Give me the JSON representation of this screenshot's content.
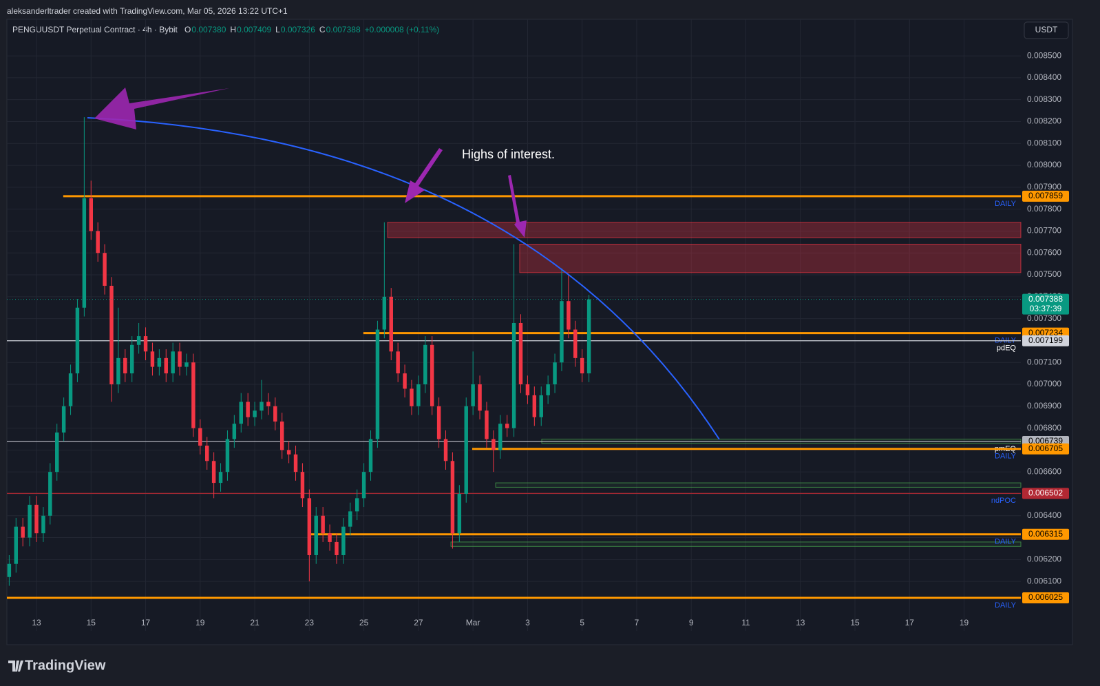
{
  "header": {
    "credit": "aleksanderltrader created with TradingView.com, Mar 05, 2026 13:22 UTC+1",
    "symbol": "PENGUUSDT Perpetual Contract · 4h · Bybit",
    "ohlc": [
      {
        "key": "O",
        "value": "0.007380"
      },
      {
        "key": "H",
        "value": "0.007409"
      },
      {
        "key": "L",
        "value": "0.007326"
      },
      {
        "key": "C",
        "value": "0.007388"
      }
    ],
    "change": "+0.000008 (+0.11%)",
    "currency": "USDT",
    "logo": "TradingView"
  },
  "chart_data": {
    "type": "candlestick",
    "annotation": "Highs of interest.",
    "up_color": "#089981",
    "down_color": "#f23645",
    "x": [
      -1,
      -0.75,
      -0.5,
      -0.25,
      0,
      0.25,
      0.5,
      0.75,
      1,
      1.25,
      1.5,
      1.75,
      2,
      2.25,
      2.5,
      2.75,
      3,
      3.25,
      3.5,
      3.75,
      4,
      4.25,
      4.5,
      4.75,
      5,
      5.25,
      5.5,
      5.75,
      6,
      6.25,
      6.5,
      6.75,
      7,
      7.25,
      7.5,
      7.75,
      8,
      8.25,
      8.5,
      8.75,
      9,
      9.25,
      9.5,
      9.75,
      10,
      10.25,
      10.5,
      10.75,
      11,
      11.25,
      11.5,
      11.75,
      12,
      12.25,
      12.5,
      12.75,
      13,
      13.25,
      13.5,
      13.75,
      14,
      14.25,
      14.5,
      14.75,
      15,
      15.25,
      15.5,
      15.75,
      16,
      16.25,
      16.5,
      16.75,
      17,
      17.25,
      17.5,
      17.75,
      18,
      18.25,
      18.5,
      18.75,
      19,
      19.25,
      19.5,
      19.75,
      20,
      20.25
    ],
    "open": [
      0.00612,
      0.00618,
      0.00635,
      0.0063,
      0.00645,
      0.00632,
      0.0064,
      0.0066,
      0.00678,
      0.0069,
      0.00705,
      0.00735,
      0.00785,
      0.0077,
      0.0076,
      0.00745,
      0.007,
      0.00712,
      0.00705,
      0.00718,
      0.00722,
      0.00715,
      0.00708,
      0.00712,
      0.00705,
      0.00715,
      0.00708,
      0.0071,
      0.0068,
      0.00672,
      0.00665,
      0.00655,
      0.0066,
      0.00675,
      0.00682,
      0.00692,
      0.00685,
      0.00688,
      0.00692,
      0.0069,
      0.00683,
      0.0067,
      0.00668,
      0.0066,
      0.00648,
      0.00622,
      0.0064,
      0.00632,
      0.00628,
      0.00622,
      0.00635,
      0.00642,
      0.00648,
      0.0066,
      0.00675,
      0.00725,
      0.0074,
      0.00715,
      0.00705,
      0.00698,
      0.0069,
      0.007,
      0.00718,
      0.0069,
      0.00675,
      0.00665,
      0.00632,
      0.0065,
      0.0069,
      0.007,
      0.00688,
      0.00675,
      0.0067,
      0.00682,
      0.0068,
      0.00728,
      0.007,
      0.00695,
      0.00685,
      0.00695,
      0.007,
      0.0071,
      0.00738,
      0.00725,
      0.00712,
      0.00705
    ],
    "high": [
      0.00622,
      0.00639,
      0.00639,
      0.00649,
      0.00649,
      0.00644,
      0.00664,
      0.00682,
      0.00694,
      0.00709,
      0.00739,
      0.00822,
      0.00793,
      0.00774,
      0.00764,
      0.00749,
      0.00735,
      0.00716,
      0.00722,
      0.00728,
      0.00726,
      0.00719,
      0.00716,
      0.00716,
      0.00719,
      0.00719,
      0.00714,
      0.00714,
      0.00684,
      0.00676,
      0.00669,
      0.00664,
      0.00679,
      0.00686,
      0.00696,
      0.00696,
      0.00692,
      0.00702,
      0.00696,
      0.00694,
      0.00687,
      0.00674,
      0.00672,
      0.00664,
      0.00652,
      0.00644,
      0.00644,
      0.00636,
      0.00632,
      0.00639,
      0.00646,
      0.00652,
      0.00664,
      0.00679,
      0.00729,
      0.00774,
      0.00744,
      0.00719,
      0.00709,
      0.00702,
      0.00704,
      0.00722,
      0.00722,
      0.00694,
      0.00679,
      0.00669,
      0.00654,
      0.00694,
      0.00715,
      0.00704,
      0.00692,
      0.00679,
      0.00686,
      0.00686,
      0.00764,
      0.00732,
      0.00704,
      0.00699,
      0.00699,
      0.00704,
      0.00714,
      0.00753,
      0.0075,
      0.00729,
      0.00716,
      0.007409
    ],
    "low": [
      0.00608,
      0.00614,
      0.00626,
      0.00626,
      0.00628,
      0.00628,
      0.00636,
      0.00656,
      0.00674,
      0.00686,
      0.00701,
      0.00731,
      0.00766,
      0.00756,
      0.00741,
      0.00692,
      0.00696,
      0.00701,
      0.00701,
      0.00714,
      0.00711,
      0.00704,
      0.00704,
      0.00701,
      0.00701,
      0.00704,
      0.00704,
      0.00676,
      0.00668,
      0.00661,
      0.00648,
      0.00651,
      0.00656,
      0.00671,
      0.00678,
      0.00681,
      0.00681,
      0.00684,
      0.00686,
      0.00679,
      0.00666,
      0.00664,
      0.00656,
      0.00644,
      0.0061,
      0.00618,
      0.00628,
      0.00624,
      0.00618,
      0.00618,
      0.00631,
      0.00638,
      0.00644,
      0.00656,
      0.00671,
      0.00721,
      0.00711,
      0.00701,
      0.00694,
      0.00686,
      0.00686,
      0.00696,
      0.00686,
      0.00671,
      0.00661,
      0.00625,
      0.00628,
      0.00646,
      0.00686,
      0.00684,
      0.00671,
      0.0066,
      0.00666,
      0.00676,
      0.00676,
      0.00696,
      0.00691,
      0.00681,
      0.00681,
      0.00691,
      0.00696,
      0.00706,
      0.00721,
      0.00708,
      0.00701,
      0.00701
    ],
    "close": [
      0.00618,
      0.00635,
      0.0063,
      0.00645,
      0.00632,
      0.0064,
      0.0066,
      0.00678,
      0.0069,
      0.00705,
      0.00735,
      0.00785,
      0.0077,
      0.0076,
      0.00745,
      0.007,
      0.00712,
      0.00705,
      0.00718,
      0.00722,
      0.00715,
      0.00708,
      0.00712,
      0.00705,
      0.00715,
      0.00708,
      0.0071,
      0.0068,
      0.00672,
      0.00665,
      0.00655,
      0.0066,
      0.00675,
      0.00682,
      0.00692,
      0.00685,
      0.00688,
      0.00692,
      0.0069,
      0.00683,
      0.0067,
      0.00668,
      0.0066,
      0.00648,
      0.00622,
      0.0064,
      0.00632,
      0.00628,
      0.00622,
      0.00635,
      0.00642,
      0.00648,
      0.0066,
      0.00675,
      0.00725,
      0.0074,
      0.00715,
      0.00705,
      0.00698,
      0.0069,
      0.007,
      0.00718,
      0.0069,
      0.00675,
      0.00665,
      0.00632,
      0.0065,
      0.0069,
      0.007,
      0.00688,
      0.00675,
      0.0067,
      0.00682,
      0.0068,
      0.00728,
      0.007,
      0.00695,
      0.00685,
      0.00695,
      0.007,
      0.0071,
      0.00738,
      0.00725,
      0.00712,
      0.00705,
      0.007388
    ],
    "xlim": [
      -1.085,
      36.08
    ],
    "ylim": [
      0.005874,
      0.008667
    ],
    "xticks": [
      {
        "value": 0,
        "label": "13"
      },
      {
        "value": 2,
        "label": "15"
      },
      {
        "value": 4,
        "label": "17"
      },
      {
        "value": 6,
        "label": "19"
      },
      {
        "value": 8,
        "label": "21"
      },
      {
        "value": 10,
        "label": "23"
      },
      {
        "value": 12,
        "label": "25"
      },
      {
        "value": 14,
        "label": "27"
      },
      {
        "value": 16,
        "label": "Mar"
      },
      {
        "value": 18,
        "label": "3"
      },
      {
        "value": 20,
        "label": "5"
      },
      {
        "value": 22,
        "label": "7"
      },
      {
        "value": 24,
        "label": "9"
      },
      {
        "value": 26,
        "label": "11"
      },
      {
        "value": 28,
        "label": "13"
      },
      {
        "value": 30,
        "label": "15"
      },
      {
        "value": 32,
        "label": "17"
      },
      {
        "value": 34,
        "label": "19"
      }
    ],
    "yticks": [
      {
        "value": 0.0085,
        "label": "0.008500"
      },
      {
        "value": 0.0084,
        "label": "0.008400"
      },
      {
        "value": 0.0083,
        "label": "0.008300"
      },
      {
        "value": 0.0082,
        "label": "0.008200"
      },
      {
        "value": 0.0081,
        "label": "0.008100"
      },
      {
        "value": 0.008,
        "label": "0.008000"
      },
      {
        "value": 0.0079,
        "label": "0.007900"
      },
      {
        "value": 0.0078,
        "label": "0.007800"
      },
      {
        "value": 0.0077,
        "label": "0.007700"
      },
      {
        "value": 0.0076,
        "label": "0.007600"
      },
      {
        "value": 0.0075,
        "label": "0.007500"
      },
      {
        "value": 0.0074,
        "label": "0.007400"
      },
      {
        "value": 0.0073,
        "label": "0.007300"
      },
      {
        "value": 0.0072,
        "label": "0.007200"
      },
      {
        "value": 0.0071,
        "label": "0.007100"
      },
      {
        "value": 0.007,
        "label": "0.007000"
      },
      {
        "value": 0.0069,
        "label": "0.006900"
      },
      {
        "value": 0.0068,
        "label": "0.006800"
      },
      {
        "value": 0.0067,
        "label": "0.006700"
      },
      {
        "value": 0.0066,
        "label": "0.006600"
      },
      {
        "value": 0.0065,
        "label": "0.006500"
      },
      {
        "value": 0.0064,
        "label": "0.006400"
      },
      {
        "value": 0.0063,
        "label": "0.006300"
      },
      {
        "value": 0.0062,
        "label": "0.006200"
      },
      {
        "value": 0.0061,
        "label": "0.006100"
      }
    ],
    "grid": true,
    "last_price": {
      "value": 0.007388,
      "countdown": "03:37:39",
      "color": "#089981"
    },
    "levels": [
      {
        "value": 0.007859,
        "color": "#ff9800",
        "x0": 0.98,
        "tag": "DAILY"
      },
      {
        "value": 0.007234,
        "color": "#ff9800",
        "x0": 11.98,
        "tag": "DAILY"
      },
      {
        "value": 0.007199,
        "color": "#d1d4dc",
        "x0": -1.085,
        "tag": "pdEQ"
      },
      {
        "value": 0.006739,
        "color": "#b2b5be",
        "x0": -1.085,
        "tag": "pmEQ"
      },
      {
        "value": 0.006705,
        "color": "#ff9800",
        "x0": 15.97,
        "tag": "DAILY"
      },
      {
        "value": 0.006502,
        "color": "#b22833",
        "x0": -1.085,
        "tag": "ndPOC"
      },
      {
        "value": 0.006315,
        "color": "#ff9800",
        "x0": 10.02,
        "tag": "DAILY"
      },
      {
        "value": 0.006025,
        "color": "#ff9800",
        "x0": -1.085,
        "tag": "DAILY"
      }
    ],
    "zones": [
      {
        "top": 0.00774,
        "bottom": 0.00767,
        "x0": 12.87,
        "color": "#f23645"
      },
      {
        "top": 0.00764,
        "bottom": 0.00751,
        "x0": 17.71,
        "color": "#f23645"
      },
      {
        "top": 0.00675,
        "bottom": 0.00673,
        "x0": 18.52,
        "color": "#4caf50"
      },
      {
        "top": 0.00655,
        "bottom": 0.00653,
        "x0": 16.83,
        "color": "#4caf50"
      },
      {
        "top": 0.00628,
        "bottom": 0.00626,
        "x0": 15.19,
        "color": "#4caf50"
      }
    ]
  }
}
